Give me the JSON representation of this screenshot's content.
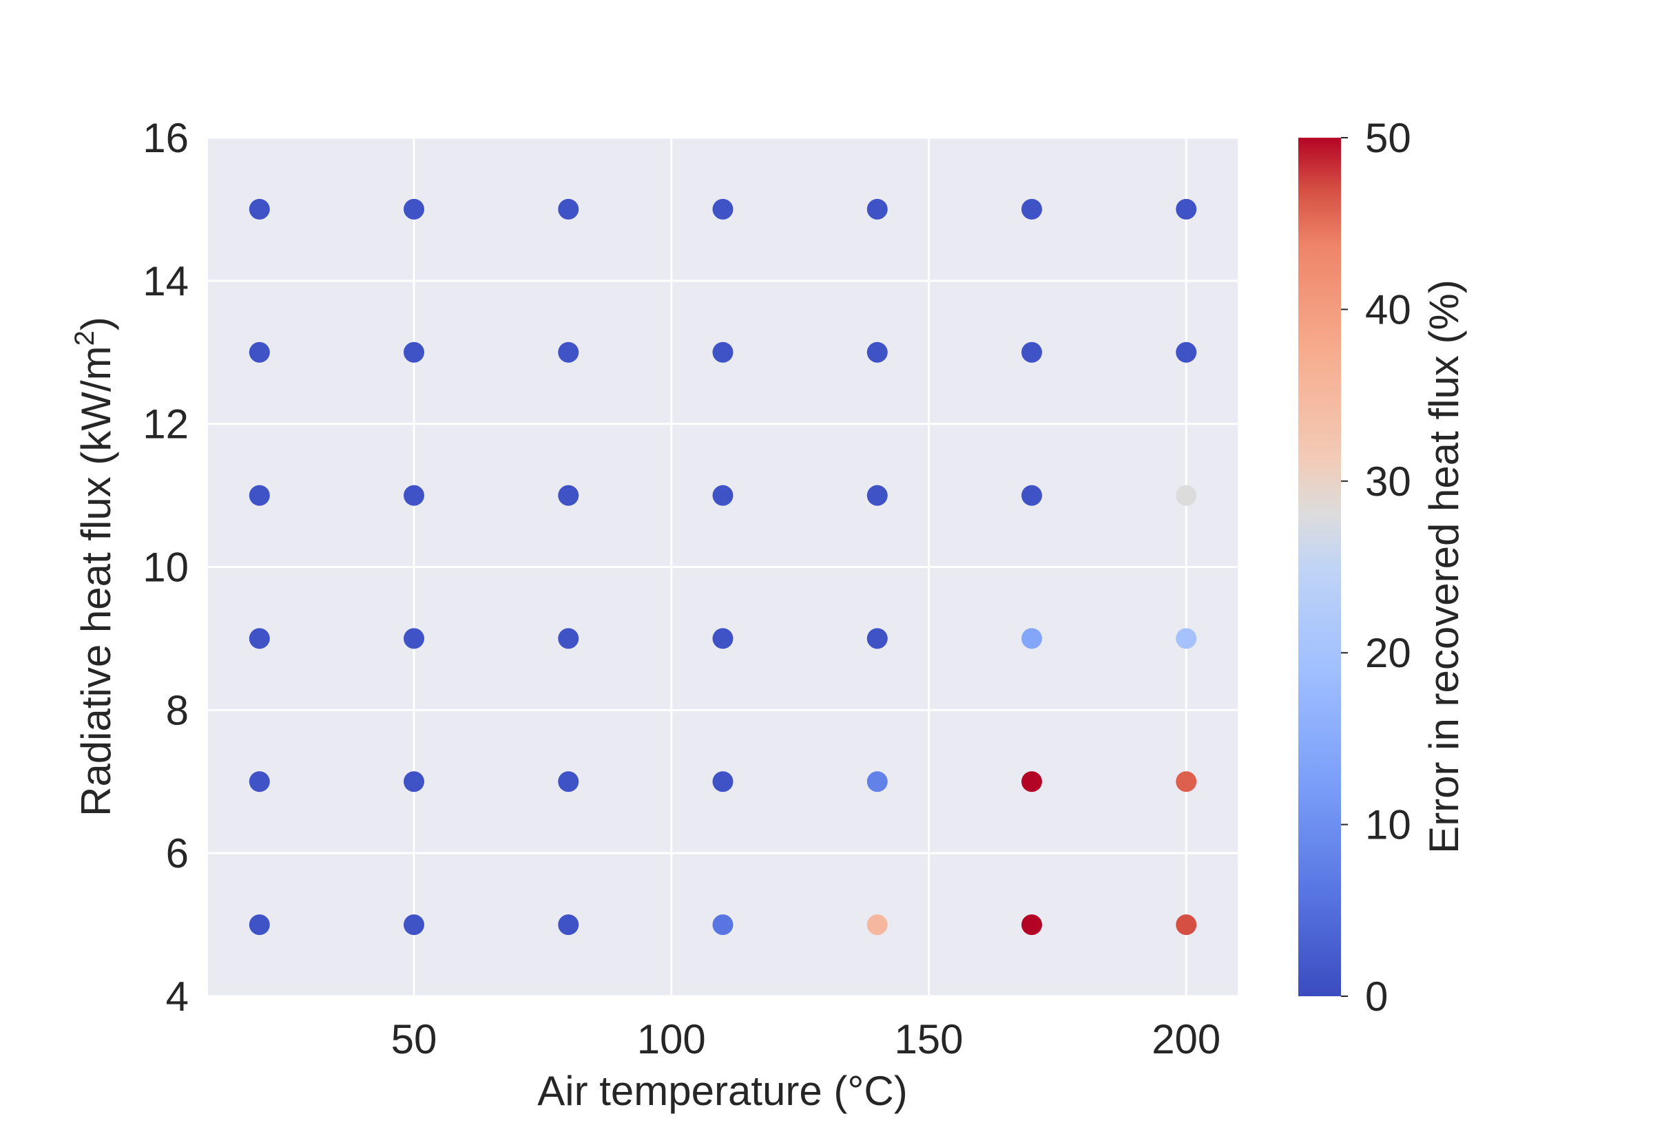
{
  "chart_data": {
    "type": "scatter",
    "title": "",
    "xlabel": "Air temperature (°C)",
    "ylabel_main": "Radiative heat flux (kW/m",
    "ylabel_sup": "2",
    "ylabel_close": ")",
    "xlim": [
      10,
      210
    ],
    "ylim": [
      4,
      16
    ],
    "xticks": [
      50,
      100,
      150,
      200
    ],
    "yticks": [
      4,
      6,
      8,
      10,
      12,
      14,
      16
    ],
    "grid": true,
    "colormap": "coolwarm",
    "colorbar": {
      "label": "Error in recovered heat flux (%)",
      "range": [
        0,
        50
      ],
      "ticks": [
        0,
        10,
        20,
        30,
        40,
        50
      ]
    },
    "points": [
      {
        "x": 20,
        "y": 15,
        "error": 1
      },
      {
        "x": 50,
        "y": 15,
        "error": 1
      },
      {
        "x": 80,
        "y": 15,
        "error": 1
      },
      {
        "x": 110,
        "y": 15,
        "error": 1
      },
      {
        "x": 140,
        "y": 15,
        "error": 1
      },
      {
        "x": 170,
        "y": 15,
        "error": 1
      },
      {
        "x": 200,
        "y": 15,
        "error": 1
      },
      {
        "x": 20,
        "y": 13,
        "error": 1
      },
      {
        "x": 50,
        "y": 13,
        "error": 1
      },
      {
        "x": 80,
        "y": 13,
        "error": 1
      },
      {
        "x": 110,
        "y": 13,
        "error": 1
      },
      {
        "x": 140,
        "y": 13,
        "error": 1
      },
      {
        "x": 170,
        "y": 13,
        "error": 1
      },
      {
        "x": 200,
        "y": 13,
        "error": 1
      },
      {
        "x": 20,
        "y": 11,
        "error": 1
      },
      {
        "x": 50,
        "y": 11,
        "error": 1
      },
      {
        "x": 80,
        "y": 11,
        "error": 1
      },
      {
        "x": 110,
        "y": 11,
        "error": 1
      },
      {
        "x": 140,
        "y": 11,
        "error": 1
      },
      {
        "x": 170,
        "y": 11,
        "error": 1
      },
      {
        "x": 200,
        "y": 11,
        "error": 28
      },
      {
        "x": 20,
        "y": 9,
        "error": 1
      },
      {
        "x": 50,
        "y": 9,
        "error": 1
      },
      {
        "x": 80,
        "y": 9,
        "error": 1
      },
      {
        "x": 110,
        "y": 9,
        "error": 1
      },
      {
        "x": 140,
        "y": 9,
        "error": 1
      },
      {
        "x": 170,
        "y": 9,
        "error": 14
      },
      {
        "x": 200,
        "y": 9,
        "error": 20
      },
      {
        "x": 20,
        "y": 7,
        "error": 1
      },
      {
        "x": 50,
        "y": 7,
        "error": 1
      },
      {
        "x": 80,
        "y": 7,
        "error": 1
      },
      {
        "x": 110,
        "y": 7,
        "error": 1
      },
      {
        "x": 140,
        "y": 7,
        "error": 8
      },
      {
        "x": 170,
        "y": 7,
        "error": 50
      },
      {
        "x": 200,
        "y": 7,
        "error": 46
      },
      {
        "x": 20,
        "y": 5,
        "error": 1
      },
      {
        "x": 50,
        "y": 5,
        "error": 1
      },
      {
        "x": 80,
        "y": 5,
        "error": 1
      },
      {
        "x": 110,
        "y": 5,
        "error": 6
      },
      {
        "x": 140,
        "y": 5,
        "error": 35
      },
      {
        "x": 170,
        "y": 5,
        "error": 50
      },
      {
        "x": 200,
        "y": 5,
        "error": 47
      }
    ]
  },
  "colors": {
    "plot_background": "#eaeaf2",
    "grid": "#ffffff",
    "text": "#262626"
  }
}
